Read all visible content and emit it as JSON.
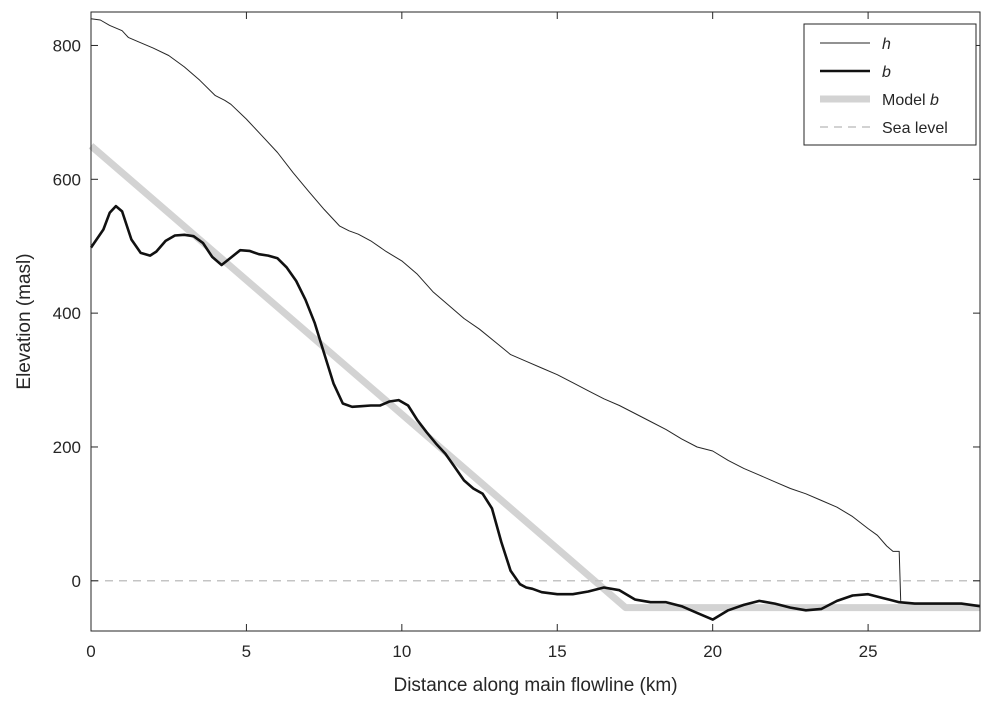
{
  "chart_data": {
    "type": "line",
    "title": "",
    "xlabel": "Distance along main flowline (km)",
    "ylabel": "Elevation (masl)",
    "xlim": [
      0,
      28.6
    ],
    "ylim": [
      -75,
      850
    ],
    "xticks": [
      0,
      5,
      10,
      15,
      20,
      25
    ],
    "yticks": [
      0,
      200,
      400,
      600,
      800
    ],
    "grid": false,
    "legend_position": "top-right",
    "series": [
      {
        "name": "h",
        "color": "#262626",
        "style": "thin",
        "x": [
          0,
          0.3,
          0.6,
          1.0,
          1.2,
          1.5,
          2.0,
          2.5,
          3.0,
          3.5,
          4.0,
          4.3,
          4.5,
          5.0,
          5.5,
          6.0,
          6.5,
          7.0,
          7.5,
          8.0,
          8.3,
          8.6,
          9.0,
          9.5,
          10.0,
          10.5,
          11.0,
          11.5,
          12.0,
          12.5,
          13.0,
          13.5,
          14.0,
          14.5,
          15.0,
          15.5,
          16.0,
          16.5,
          17.0,
          17.5,
          18.0,
          18.5,
          19.0,
          19.5,
          20.0,
          20.5,
          21.0,
          21.5,
          22.0,
          22.5,
          23.0,
          23.5,
          24.0,
          24.5,
          25.0,
          25.3,
          25.6,
          25.8,
          25.9,
          26.0,
          26.05
        ],
        "y": [
          840,
          838,
          830,
          822,
          812,
          806,
          796,
          785,
          768,
          748,
          725,
          718,
          712,
          690,
          665,
          640,
          610,
          582,
          555,
          530,
          523,
          518,
          508,
          492,
          478,
          458,
          432,
          412,
          392,
          376,
          357,
          338,
          328,
          318,
          308,
          296,
          284,
          272,
          262,
          250,
          238,
          226,
          212,
          200,
          194,
          180,
          168,
          158,
          148,
          138,
          130,
          120,
          110,
          96,
          78,
          68,
          52,
          44,
          44,
          44,
          -30
        ]
      },
      {
        "name": "b",
        "color": "#111111",
        "style": "thick",
        "x": [
          0,
          0.4,
          0.6,
          0.8,
          1.0,
          1.3,
          1.6,
          1.9,
          2.1,
          2.4,
          2.7,
          3.0,
          3.3,
          3.6,
          3.9,
          4.2,
          4.5,
          4.8,
          5.1,
          5.4,
          5.7,
          6.0,
          6.3,
          6.6,
          6.9,
          7.2,
          7.5,
          7.8,
          8.1,
          8.4,
          8.7,
          9.0,
          9.3,
          9.6,
          9.9,
          10.2,
          10.5,
          10.8,
          11.1,
          11.4,
          11.7,
          12.0,
          12.3,
          12.6,
          12.9,
          13.2,
          13.5,
          13.8,
          14.0,
          14.2,
          14.5,
          15.0,
          15.5,
          16.0,
          16.5,
          17.0,
          17.5,
          18.0,
          18.5,
          19.0,
          19.5,
          20.0,
          20.5,
          21.0,
          21.5,
          22.0,
          22.5,
          23.0,
          23.5,
          24.0,
          24.5,
          25.0,
          25.5,
          26.0,
          26.5,
          27.0,
          27.5,
          28.0,
          28.6
        ],
        "y": [
          498,
          525,
          550,
          560,
          552,
          510,
          490,
          486,
          492,
          508,
          516,
          517,
          515,
          505,
          484,
          472,
          483,
          494,
          493,
          488,
          486,
          482,
          468,
          448,
          420,
          385,
          340,
          295,
          265,
          260,
          261,
          262,
          262,
          268,
          270,
          262,
          240,
          222,
          205,
          190,
          170,
          150,
          138,
          130,
          108,
          58,
          15,
          -5,
          -10,
          -12,
          -17,
          -20,
          -20,
          -16,
          -10,
          -14,
          -28,
          -32,
          -32,
          -38,
          -48,
          -58,
          -44,
          -36,
          -30,
          -34,
          -40,
          -44,
          -42,
          -30,
          -22,
          -20,
          -26,
          -32,
          -34,
          -34,
          -34,
          -34,
          -38
        ]
      },
      {
        "name": "Model b",
        "color": "#d3d3d3",
        "style": "band",
        "x": [
          0,
          17.2,
          28.6
        ],
        "y": [
          650,
          -40,
          -40
        ]
      },
      {
        "name": "Sea level",
        "color": "#c4c4c4",
        "style": "dashed",
        "x": [
          0,
          28.6
        ],
        "y": [
          0,
          0
        ]
      }
    ]
  }
}
